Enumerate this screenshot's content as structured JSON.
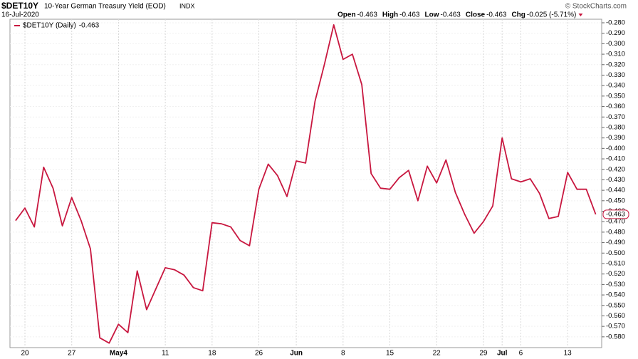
{
  "chart_data": {
    "type": "line",
    "symbol": "$DET10Y",
    "title": "10-Year German Treasury Yield (EOD)",
    "exchange": "INDX",
    "date": "16-Jul-2020",
    "credit": "© StockCharts.com",
    "quote": [
      {
        "label": "Open",
        "value": "-0.463"
      },
      {
        "label": "High",
        "value": "-0.463"
      },
      {
        "label": "Low",
        "value": "-0.463"
      },
      {
        "label": "Close",
        "value": "-0.463"
      },
      {
        "label": "Chg",
        "value": "-0.025 (-5.71%)"
      }
    ],
    "categories": [
      null,
      "20",
      null,
      null,
      null,
      null,
      "27",
      null,
      null,
      null,
      null,
      "May4",
      null,
      null,
      null,
      null,
      "11",
      null,
      null,
      null,
      null,
      "18",
      null,
      null,
      null,
      null,
      "26",
      null,
      null,
      null,
      "Jun",
      null,
      null,
      null,
      null,
      "8",
      null,
      null,
      null,
      null,
      "15",
      null,
      null,
      null,
      null,
      "22",
      null,
      null,
      null,
      null,
      "29",
      null,
      "Jul",
      null,
      "6",
      null,
      null,
      null,
      null,
      "13",
      null,
      null,
      null
    ],
    "series": [
      {
        "name": "$DET10Y (Daily)",
        "color": "#c8173f",
        "values": [
          -0.469,
          -0.457,
          -0.475,
          -0.418,
          -0.438,
          -0.474,
          -0.447,
          -0.469,
          -0.496,
          -0.581,
          -0.586,
          -0.568,
          -0.576,
          -0.517,
          -0.554,
          -0.534,
          -0.514,
          -0.516,
          -0.521,
          -0.533,
          -0.536,
          -0.471,
          -0.472,
          -0.475,
          -0.488,
          -0.493,
          -0.439,
          -0.415,
          -0.426,
          -0.446,
          -0.412,
          -0.414,
          -0.355,
          -0.32,
          -0.282,
          -0.315,
          -0.31,
          -0.339,
          -0.424,
          -0.438,
          -0.439,
          -0.428,
          -0.421,
          -0.45,
          -0.417,
          -0.433,
          -0.411,
          -0.442,
          -0.463,
          -0.481,
          -0.47,
          -0.455,
          -0.39,
          -0.429,
          -0.432,
          -0.429,
          -0.443,
          -0.467,
          -0.465,
          -0.423,
          -0.439,
          -0.439,
          -0.463
        ]
      }
    ],
    "ylim": [
      -0.5903,
      -0.2766
    ],
    "yticks": [
      {
        "value": -0.28,
        "label": "-0.280"
      },
      {
        "value": -0.29,
        "label": "-0.290"
      },
      {
        "value": -0.3,
        "label": "-0.300"
      },
      {
        "value": -0.31,
        "label": "-0.310"
      },
      {
        "value": -0.32,
        "label": "-0.320"
      },
      {
        "value": -0.33,
        "label": "-0.330"
      },
      {
        "value": -0.34,
        "label": "-0.340"
      },
      {
        "value": -0.35,
        "label": "-0.350"
      },
      {
        "value": -0.36,
        "label": "-0.360"
      },
      {
        "value": -0.37,
        "label": "-0.370"
      },
      {
        "value": -0.38,
        "label": "-0.380"
      },
      {
        "value": -0.39,
        "label": "-0.390"
      },
      {
        "value": -0.4,
        "label": "-0.400"
      },
      {
        "value": -0.41,
        "label": "-0.410"
      },
      {
        "value": -0.42,
        "label": "-0.420"
      },
      {
        "value": -0.43,
        "label": "-0.430"
      },
      {
        "value": -0.44,
        "label": "-0.440"
      },
      {
        "value": -0.45,
        "label": "-0.450"
      },
      {
        "value": -0.46,
        "label": "-0.460"
      },
      {
        "value": -0.47,
        "label": "-0.470"
      },
      {
        "value": -0.48,
        "label": "-0.480"
      },
      {
        "value": -0.49,
        "label": "-0.490"
      },
      {
        "value": -0.5,
        "label": "-0.500"
      },
      {
        "value": -0.51,
        "label": "-0.510"
      },
      {
        "value": -0.52,
        "label": "-0.520"
      },
      {
        "value": -0.53,
        "label": "-0.530"
      },
      {
        "value": -0.54,
        "label": "-0.540"
      },
      {
        "value": -0.55,
        "label": "-0.550"
      },
      {
        "value": -0.56,
        "label": "-0.560"
      },
      {
        "value": -0.57,
        "label": "-0.570"
      },
      {
        "value": -0.58,
        "label": "-0.580"
      }
    ],
    "grid": true,
    "legend": "top-left"
  }
}
